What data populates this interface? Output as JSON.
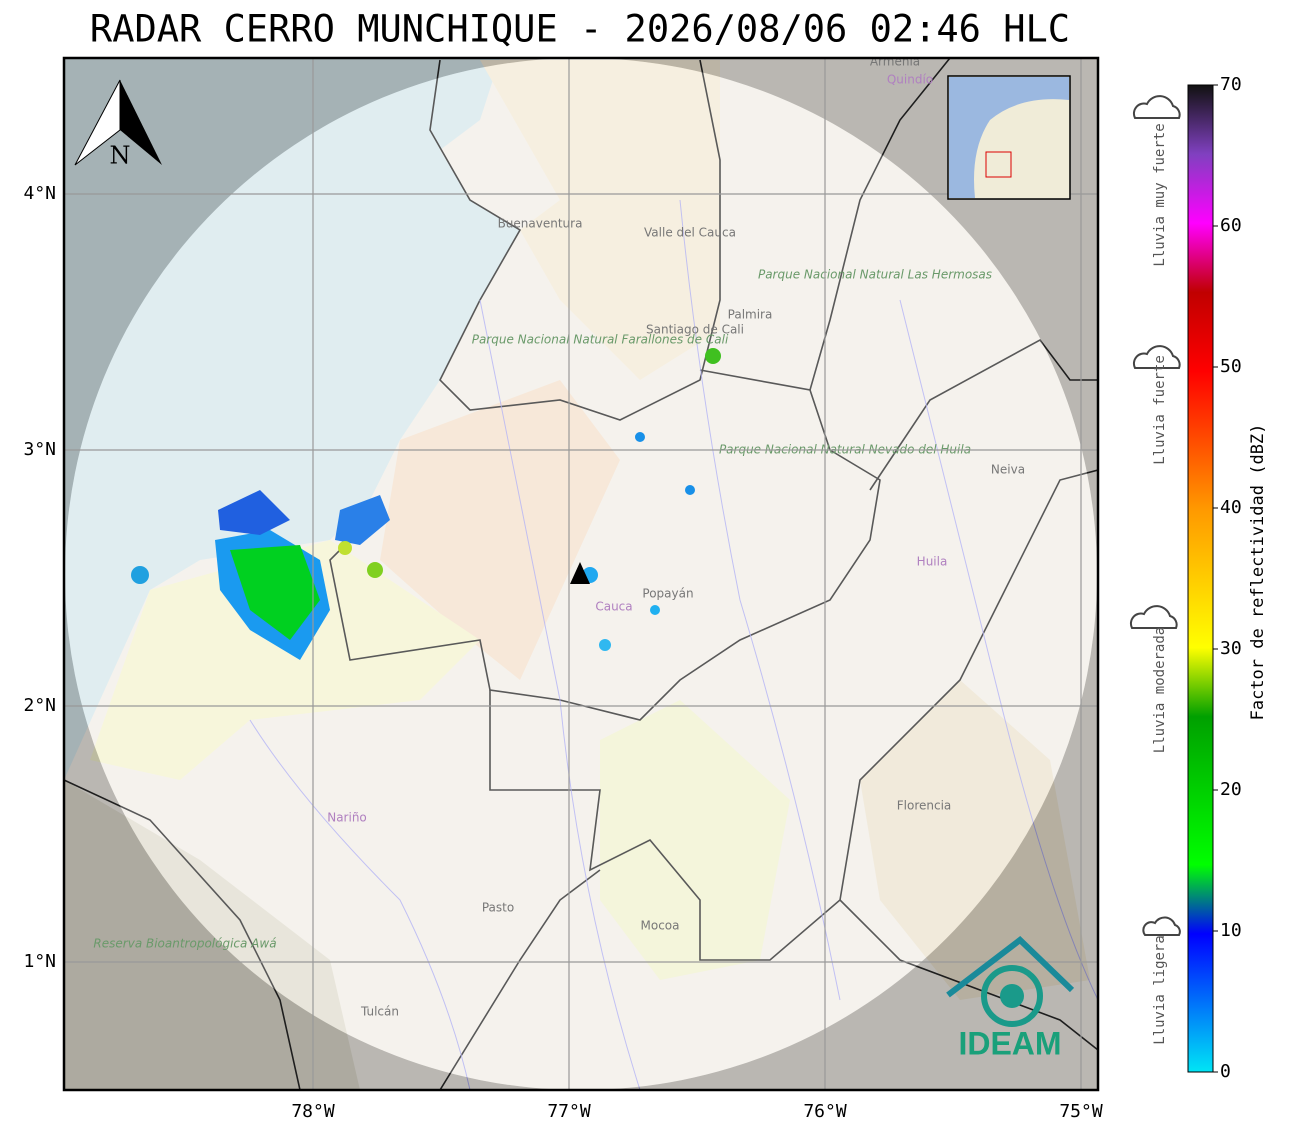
{
  "header": {
    "title": "RADAR CERRO MUNCHIQUE - 2026/08/06 02:46 HLC"
  },
  "map": {
    "north_label": "N",
    "lat_ticks": [
      {
        "value": 4,
        "label": "4°N"
      },
      {
        "value": 3,
        "label": "3°N"
      },
      {
        "value": 2,
        "label": "2°N"
      },
      {
        "value": 1,
        "label": "1°N"
      }
    ],
    "lon_ticks": [
      {
        "value": -78,
        "label": "78°W"
      },
      {
        "value": -77,
        "label": "77°W"
      },
      {
        "value": -76,
        "label": "76°W"
      },
      {
        "value": -75,
        "label": "75°W"
      }
    ],
    "places": [
      "Buenaventura",
      "Valle del Cauca",
      "Parque Nacional Natural Farallones de Cali",
      "Santiago de Cali",
      "Palmira",
      "Parque Nacional Natural Las Hermosas",
      "Parque Nacional Natural Nevado del Huila",
      "Neiva",
      "Huila",
      "Cauca",
      "Popayán",
      "Nariño",
      "Pasto",
      "Mocoa",
      "Florencia",
      "Reserva Bioantropológica Awá",
      "Tulcán",
      "Armenia",
      "Quindío"
    ],
    "logo": "IDEAM"
  },
  "colorbar": {
    "label": "Factor de reflectividad (dBZ)",
    "lim": [
      0,
      70
    ],
    "ticks": [
      0,
      10,
      20,
      30,
      40,
      50,
      60,
      70
    ]
  },
  "rain_levels": [
    "Lluvia muy fuerte",
    "Lluvia fuerte",
    "Lluvia moderada",
    "Lluvia ligera"
  ]
}
